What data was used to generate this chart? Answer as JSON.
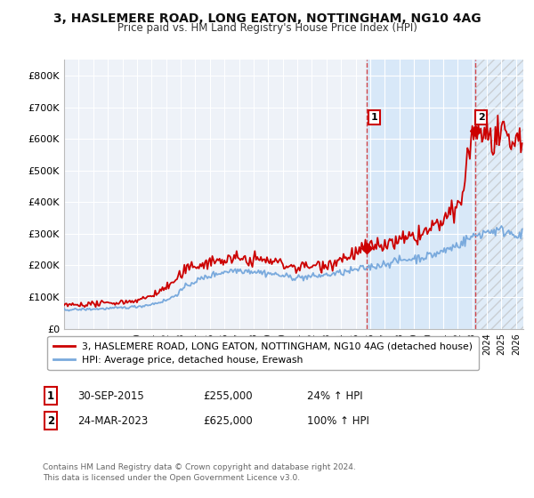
{
  "title": "3, HASLEMERE ROAD, LONG EATON, NOTTINGHAM, NG10 4AG",
  "subtitle": "Price paid vs. HM Land Registry's House Price Index (HPI)",
  "ylim": [
    0,
    850000
  ],
  "yticks": [
    0,
    100000,
    200000,
    300000,
    400000,
    500000,
    600000,
    700000,
    800000
  ],
  "ytick_labels": [
    "£0",
    "£100K",
    "£200K",
    "£300K",
    "£400K",
    "£500K",
    "£600K",
    "£700K",
    "£800K"
  ],
  "hpi_color": "#7aaadd",
  "price_color": "#cc0000",
  "background_color": "#ffffff",
  "plot_bg_color": "#eef2f8",
  "grid_color": "#ffffff",
  "highlight_bg_color": "#d8e8f8",
  "hatch_color": "#cccccc",
  "sale1_year": 2015.75,
  "sale1_value": 255000,
  "sale2_year": 2023.23,
  "sale2_value": 625000,
  "legend_line1": "3, HASLEMERE ROAD, LONG EATON, NOTTINGHAM, NG10 4AG (detached house)",
  "legend_line2": "HPI: Average price, detached house, Erewash",
  "annotation1_date": "30-SEP-2015",
  "annotation1_price": "£255,000",
  "annotation1_change": "24% ↑ HPI",
  "annotation2_date": "24-MAR-2023",
  "annotation2_price": "£625,000",
  "annotation2_change": "100% ↑ HPI",
  "footnote": "Contains HM Land Registry data © Crown copyright and database right 2024.\nThis data is licensed under the Open Government Licence v3.0."
}
